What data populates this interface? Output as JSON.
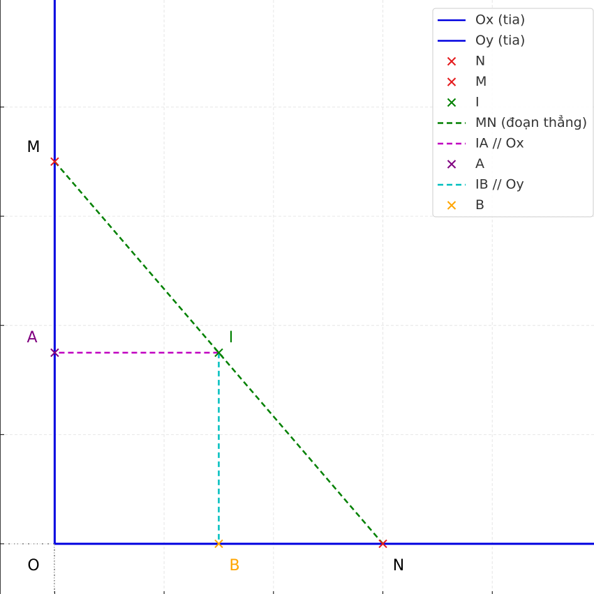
{
  "chart_data": {
    "type": "geometry",
    "xlim": [
      -0.5,
      4.93
    ],
    "ylim": [
      -0.46,
      4.98
    ],
    "xticks": [
      0,
      1,
      2,
      3,
      4
    ],
    "yticks": [
      0,
      1,
      2,
      3,
      4
    ],
    "grid": true,
    "legend": "upper right",
    "series": [
      {
        "name": "Ox (tia)",
        "kind": "line",
        "color": "#0000e0",
        "dash": false,
        "x": [
          0,
          4.93
        ],
        "y": [
          0,
          0
        ]
      },
      {
        "name": "Oy (tia)",
        "kind": "line",
        "color": "#0000e0",
        "dash": false,
        "x": [
          0,
          0
        ],
        "y": [
          0,
          4.98
        ]
      },
      {
        "name": "N",
        "kind": "scatter",
        "color": "#e41a1c",
        "x": [
          3
        ],
        "y": [
          0
        ]
      },
      {
        "name": "M",
        "kind": "scatter",
        "color": "#e41a1c",
        "x": [
          0
        ],
        "y": [
          3.5
        ]
      },
      {
        "name": "I",
        "kind": "scatter",
        "color": "#008000",
        "x": [
          1.5
        ],
        "y": [
          1.75
        ]
      },
      {
        "name": "MN (đoạn thẳng)",
        "kind": "line",
        "color": "#008000",
        "dash": true,
        "x": [
          0,
          3
        ],
        "y": [
          3.5,
          0
        ]
      },
      {
        "name": "IA // Ox",
        "kind": "line",
        "color": "#c000c0",
        "dash": true,
        "x": [
          1.5,
          0
        ],
        "y": [
          1.75,
          1.75
        ]
      },
      {
        "name": "A",
        "kind": "scatter",
        "color": "#800080",
        "x": [
          0
        ],
        "y": [
          1.75
        ]
      },
      {
        "name": "IB // Oy",
        "kind": "line",
        "color": "#00bfbf",
        "dash": true,
        "x": [
          1.5,
          1.5
        ],
        "y": [
          1.75,
          0
        ]
      },
      {
        "name": "B",
        "kind": "scatter",
        "color": "#ffa500",
        "x": [
          1.5
        ],
        "y": [
          0
        ]
      }
    ],
    "annotations": [
      {
        "text": "O",
        "color": "#000000"
      },
      {
        "text": "M",
        "color": "#000000"
      },
      {
        "text": "A",
        "color": "#800080"
      },
      {
        "text": "I",
        "color": "#008000"
      },
      {
        "text": "B",
        "color": "#ffa500"
      },
      {
        "text": "N",
        "color": "#000000"
      }
    ]
  }
}
